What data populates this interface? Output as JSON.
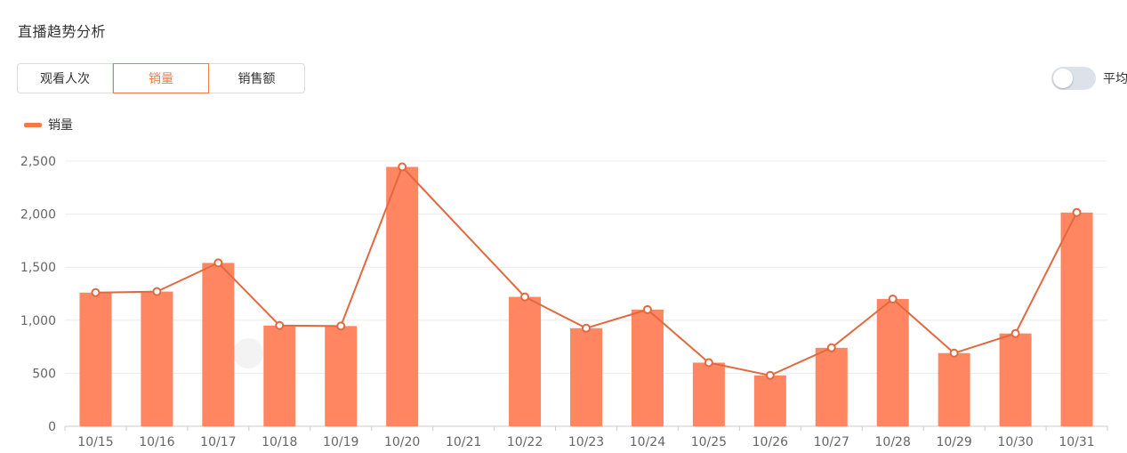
{
  "section": {
    "title": "直播趋势分析"
  },
  "tabs": [
    {
      "label": "观看人次",
      "active": false
    },
    {
      "label": "销量",
      "active": true
    },
    {
      "label": "销售额",
      "active": false
    }
  ],
  "toggle": {
    "label": "平均",
    "on": false
  },
  "colors": {
    "accent": "#f07b47",
    "bar": "#ff8660",
    "line": "#e2693f",
    "grid": "#ececec",
    "axis_text": "#666666"
  },
  "chart_data": {
    "type": "bar",
    "legend": [
      "销量"
    ],
    "categories": [
      "10/15",
      "10/16",
      "10/17",
      "10/18",
      "10/19",
      "10/20",
      "10/21",
      "10/22",
      "10/23",
      "10/24",
      "10/25",
      "10/26",
      "10/27",
      "10/28",
      "10/29",
      "10/30",
      "10/31"
    ],
    "series": [
      {
        "name": "销量",
        "type": "bar",
        "values": [
          1260,
          1270,
          1540,
          950,
          945,
          2445,
          null,
          1220,
          925,
          1100,
          600,
          480,
          740,
          1200,
          690,
          875,
          2015
        ]
      },
      {
        "name": "销量",
        "type": "line",
        "values": [
          1260,
          1270,
          1540,
          950,
          945,
          2445,
          null,
          1220,
          925,
          1100,
          600,
          480,
          740,
          1200,
          690,
          875,
          2015
        ]
      }
    ],
    "yticks": [
      "0",
      "500",
      "1,000",
      "1,500",
      "2,000",
      "2,500"
    ],
    "ylim": [
      0,
      2500
    ],
    "grid": true,
    "legend_position": "top-left"
  }
}
